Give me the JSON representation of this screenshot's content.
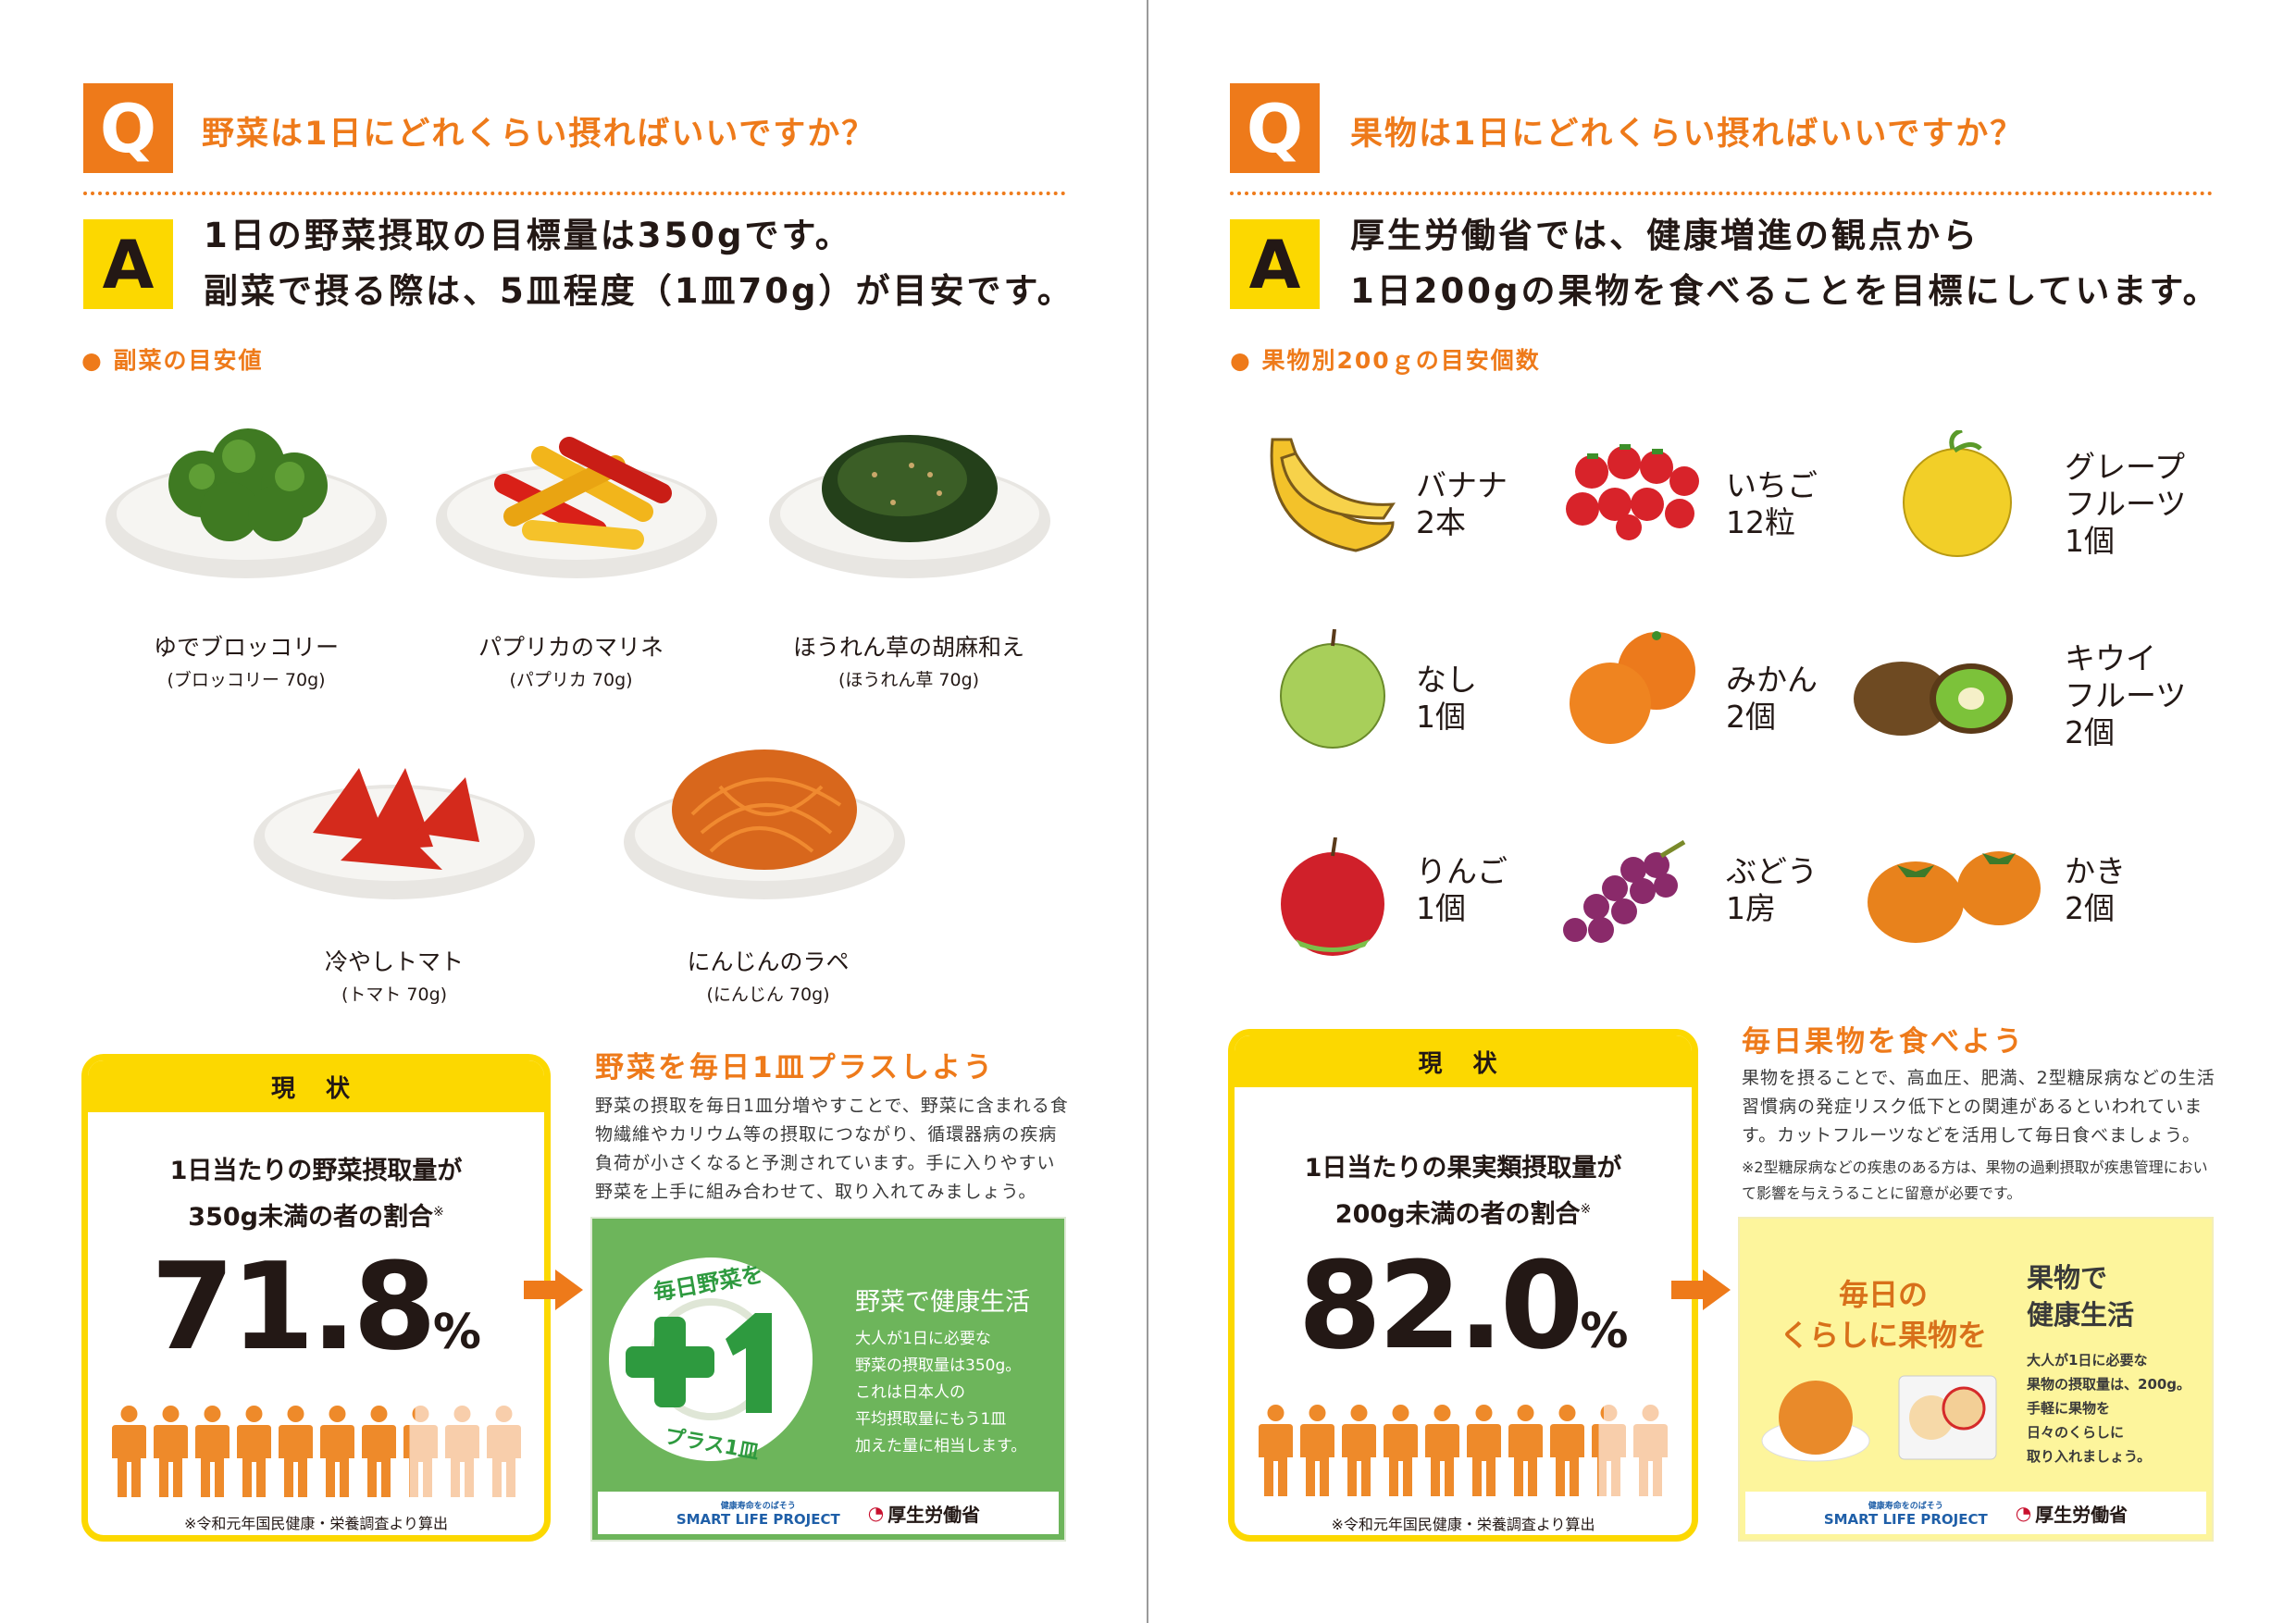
{
  "colors": {
    "orange": "#ee7a1a",
    "yellow": "#fcd800",
    "green": "#6db55b",
    "dark_green": "#2e9a3f",
    "pale_yellow": "#fdf59c",
    "person_on": "#ee8a2a",
    "person_off": "#f8ceab"
  },
  "left": {
    "q_mark": "Q",
    "question": "野菜は1日にどれくらい摂ればいいですか？",
    "a_mark": "A",
    "answer_lines": [
      "1日の野菜摂取の目標量は350gです。",
      "副菜で摂る際は、5皿程度（1皿70g）が目安です。"
    ],
    "section_title": "● 副菜の目安値",
    "dishes": [
      {
        "name": "ゆでブロッコリー",
        "amount": "(ブロッコリー 70g)"
      },
      {
        "name": "パプリカのマリネ",
        "amount": "(パプリカ 70g)"
      },
      {
        "name": "ほうれん草の胡麻和え",
        "amount": "(ほうれん草 70g)"
      },
      {
        "name": "冷やしトマト",
        "amount": "(トマト 70g)"
      },
      {
        "name": "にんじんのラペ",
        "amount": "(にんじん 70g)"
      }
    ],
    "status": {
      "header": "現 状",
      "lead_lines": [
        "1日当たりの野菜摂取量が",
        "350g未満の者の割合"
      ],
      "asterisk": "※",
      "value": "71.8",
      "unit": "%",
      "percent": 71.8,
      "note": "※令和元年国民健康・栄養調査より算出"
    },
    "campaign": {
      "heading": "野菜を毎日1皿プラスしよう",
      "paragraph": "野菜の摂取を毎日1皿分増やすことで、野菜に含まれる食物繊維やカリウム等の摂取につながり、循環器病の疾病負荷が小さくなると予測されています。手に入りやすい野菜を上手に組み合わせて、取り入れてみましょう。",
      "badge_top": "毎日野菜を",
      "badge_plus": "+1",
      "badge_bottom": "プラス1皿",
      "panel_title": "野菜で健康生活",
      "panel_lines": [
        "大人が1日に必要な",
        "野菜の摂取量は350g。",
        "これは日本人の",
        "平均摂取量にもう1皿",
        "加えた量に相当します。"
      ]
    }
  },
  "right": {
    "q_mark": "Q",
    "question": "果物は1日にどれくらい摂ればいいですか？",
    "a_mark": "A",
    "answer_lines": [
      "厚生労働省では、健康増進の観点から",
      "1日200gの果物を食べることを目標にしています。"
    ],
    "section_title": "● 果物別200ｇの目安個数",
    "fruits": [
      {
        "lines": [
          "バナナ",
          "2本"
        ],
        "icon": "banana"
      },
      {
        "lines": [
          "いちご",
          "12粒"
        ],
        "icon": "strawberry"
      },
      {
        "lines": [
          "グレープ",
          "フルーツ",
          "1個"
        ],
        "icon": "grapefruit"
      },
      {
        "lines": [
          "なし",
          "1個"
        ],
        "icon": "pear"
      },
      {
        "lines": [
          "みかん",
          "2個"
        ],
        "icon": "mandarin"
      },
      {
        "lines": [
          "キウイ",
          "フルーツ",
          "2個"
        ],
        "icon": "kiwi"
      },
      {
        "lines": [
          "りんご",
          "1個"
        ],
        "icon": "apple"
      },
      {
        "lines": [
          "ぶどう",
          "1房"
        ],
        "icon": "grapes"
      },
      {
        "lines": [
          "かき",
          "2個"
        ],
        "icon": "persimmon"
      }
    ],
    "status": {
      "header": "現 状",
      "lead_lines": [
        "1日当たりの果実類摂取量が",
        "200g未満の者の割合"
      ],
      "asterisk": "※",
      "value": "82.0",
      "unit": "%",
      "percent": 82.0,
      "note": "※令和元年国民健康・栄養調査より算出"
    },
    "campaign": {
      "heading": "毎日果物を食べよう",
      "paragraph": "果物を摂ることで、高血圧、肥満、2型糖尿病などの生活習慣病の発症リスク低下との関連があるといわれています。カットフルーツなどを活用して毎日食べましょう。",
      "note": "※2型糖尿病などの疾患のある方は、果物の過剰摂取が疾患管理において影響を与えうることに留意が必要です。",
      "panel_slogan_lines": [
        "毎日の",
        "くらしに果物を"
      ],
      "panel_title_lines": [
        "果物で",
        "健康生活"
      ],
      "panel_lines": [
        "大人が1日に必要な",
        "果物の摂取量は、200g。",
        "手軽に果物を",
        "日々のくらしに",
        "取り入れましょう。"
      ]
    }
  },
  "footer": {
    "slp_tagline": "健康寿命をのばそう",
    "slp_name": "SMART LIFE PROJECT",
    "mhlw_name": "厚生労働省"
  }
}
